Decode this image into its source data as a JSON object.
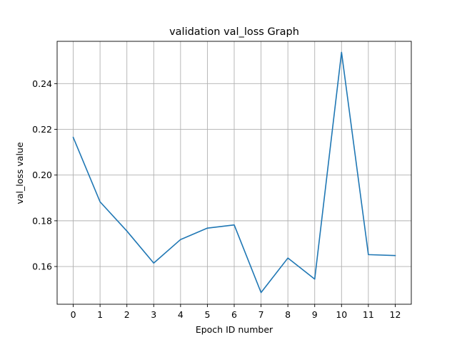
{
  "chart_data": {
    "type": "line",
    "title": "validation val_loss Graph",
    "xlabel": "Epoch ID number",
    "ylabel": "val_loss value",
    "x": [
      0,
      1,
      2,
      3,
      4,
      5,
      6,
      7,
      8,
      9,
      10,
      11,
      12
    ],
    "x_tick_labels": [
      "0",
      "1",
      "2",
      "3",
      "4",
      "5",
      "6",
      "7",
      "8",
      "9",
      "10",
      "11",
      "12"
    ],
    "y_ticks": [
      0.16,
      0.18,
      0.2,
      0.22,
      0.24
    ],
    "y_tick_labels": [
      "0.16",
      "0.18",
      "0.20",
      "0.22",
      "0.24"
    ],
    "xlim": [
      -0.6,
      12.6
    ],
    "ylim": [
      0.1435,
      0.2585
    ],
    "grid": true,
    "series": [
      {
        "values": [
          0.2165,
          0.1883,
          0.1755,
          0.1615,
          0.1718,
          0.1768,
          0.1782,
          0.1486,
          0.1637,
          0.1545,
          0.2537,
          0.1652,
          0.1648
        ],
        "color": "#1f77b4"
      }
    ]
  }
}
